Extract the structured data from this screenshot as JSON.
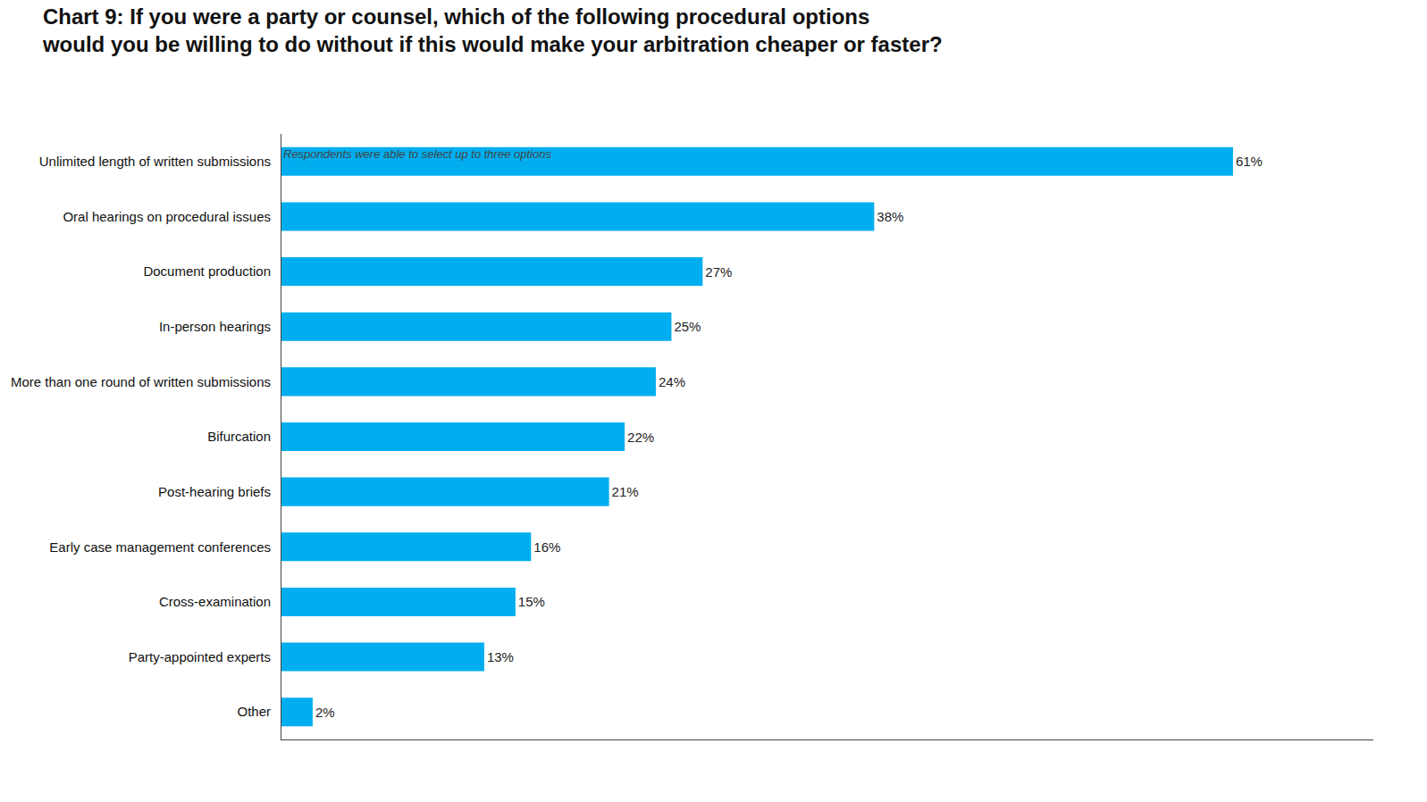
{
  "chart_data": {
    "type": "bar",
    "orientation": "horizontal",
    "title": "Chart 9: If you were a party or counsel, which of the following procedural options\nwould you be willing to do without if this would make your arbitration cheaper or faster?",
    "categories": [
      "Unlimited length of written submissions",
      "Oral hearings on procedural issues",
      "Document production",
      "In-person hearings",
      "More than one round of written submissions",
      "Bifurcation",
      "Post-hearing briefs",
      "Early case management conferences",
      "Cross-examination",
      "Party-appointed experts",
      "Other"
    ],
    "values": [
      61,
      38,
      27,
      25,
      24,
      22,
      21,
      16,
      15,
      13,
      2
    ],
    "value_labels": [
      "61%",
      "38%",
      "27%",
      "25%",
      "24%",
      "22%",
      "21%",
      "16%",
      "15%",
      "13%",
      "2%"
    ],
    "data_labels": true,
    "color": "#00AEEF",
    "xlim": [
      0,
      70
    ],
    "grid": false,
    "tick_labels": "y",
    "annotations": [
      "Respondents were able to select up to three options"
    ]
  }
}
